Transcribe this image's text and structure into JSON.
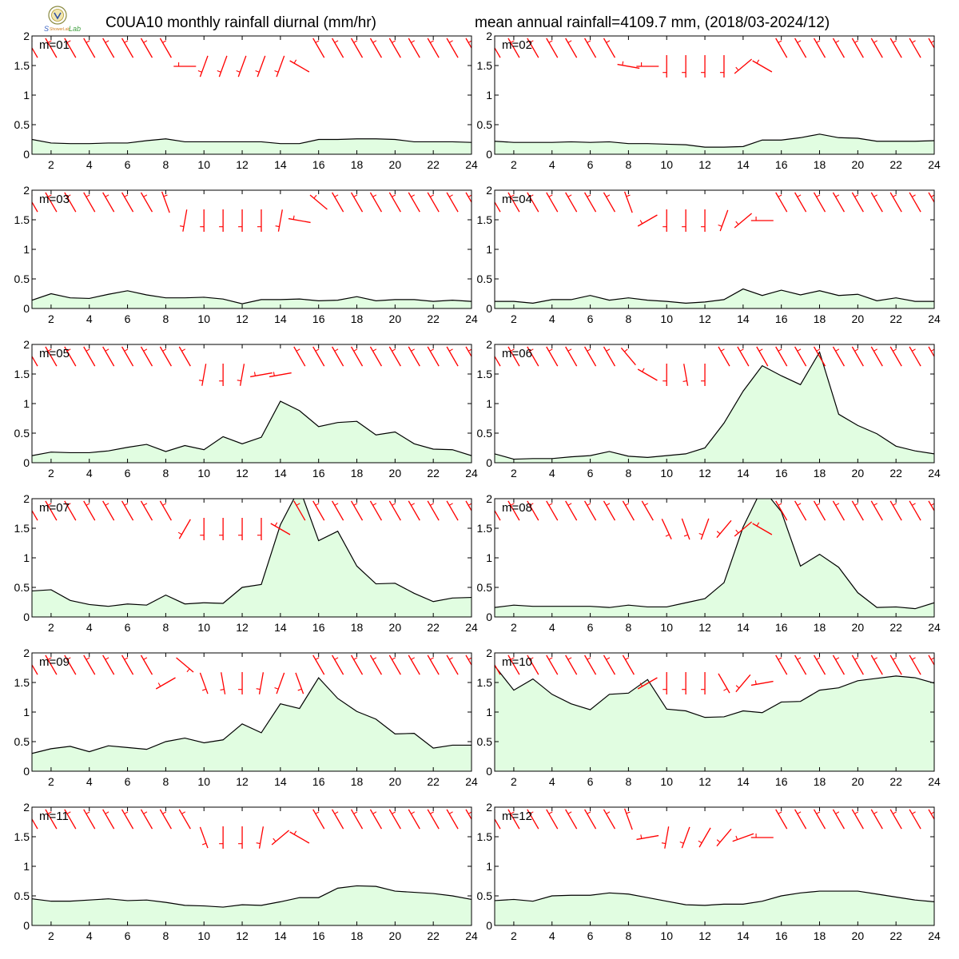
{
  "header": {
    "title_left": "C0UA10 monthly rainfall diurnal (mm/hr)",
    "title_right": "mean annual rainfall=4109.7 mm, (2018/03-2024/12)"
  },
  "colors": {
    "fill": "#e1fde1",
    "line": "#000000",
    "wind": "#ff0000",
    "axis": "#000000"
  },
  "chart_data": [
    {
      "type": "area",
      "label": "m=01",
      "x": [
        1,
        2,
        3,
        4,
        5,
        6,
        7,
        8,
        9,
        10,
        11,
        12,
        13,
        14,
        15,
        16,
        17,
        18,
        19,
        20,
        21,
        22,
        23,
        24
      ],
      "values": [
        0.25,
        0.19,
        0.18,
        0.18,
        0.19,
        0.19,
        0.23,
        0.26,
        0.21,
        0.21,
        0.21,
        0.21,
        0.21,
        0.18,
        0.18,
        0.25,
        0.25,
        0.26,
        0.26,
        0.25,
        0.21,
        0.21,
        0.21,
        0.2
      ],
      "xlim": [
        1,
        24
      ],
      "ylim": [
        0,
        2
      ],
      "wind_dir": [
        330,
        330,
        330,
        330,
        330,
        330,
        330,
        330,
        270,
        200,
        200,
        200,
        200,
        200,
        300,
        330,
        330,
        330,
        330,
        330,
        330,
        330,
        330,
        330
      ]
    },
    {
      "type": "area",
      "label": "m=02",
      "x": [
        1,
        2,
        3,
        4,
        5,
        6,
        7,
        8,
        9,
        10,
        11,
        12,
        13,
        14,
        15,
        16,
        17,
        18,
        19,
        20,
        21,
        22,
        23,
        24
      ],
      "values": [
        0.22,
        0.2,
        0.2,
        0.2,
        0.21,
        0.2,
        0.21,
        0.18,
        0.18,
        0.17,
        0.16,
        0.12,
        0.12,
        0.13,
        0.24,
        0.24,
        0.28,
        0.34,
        0.28,
        0.27,
        0.22,
        0.22,
        0.22,
        0.23
      ],
      "xlim": [
        1,
        24
      ],
      "ylim": [
        0,
        2
      ],
      "wind_dir": [
        330,
        330,
        330,
        330,
        330,
        330,
        330,
        280,
        270,
        180,
        180,
        180,
        180,
        230,
        300,
        330,
        330,
        330,
        330,
        330,
        330,
        330,
        330,
        330
      ]
    },
    {
      "type": "area",
      "label": "m=03",
      "x": [
        1,
        2,
        3,
        4,
        5,
        6,
        7,
        8,
        9,
        10,
        11,
        12,
        13,
        14,
        15,
        16,
        17,
        18,
        19,
        20,
        21,
        22,
        23,
        24
      ],
      "values": [
        0.14,
        0.25,
        0.18,
        0.17,
        0.24,
        0.3,
        0.23,
        0.18,
        0.18,
        0.19,
        0.16,
        0.08,
        0.15,
        0.15,
        0.16,
        0.13,
        0.14,
        0.2,
        0.13,
        0.15,
        0.15,
        0.12,
        0.14,
        0.12
      ],
      "xlim": [
        1,
        24
      ],
      "ylim": [
        0,
        2
      ],
      "wind_dir": [
        330,
        330,
        330,
        330,
        330,
        330,
        330,
        340,
        190,
        180,
        180,
        180,
        180,
        190,
        280,
        310,
        330,
        330,
        330,
        330,
        330,
        330,
        330,
        330
      ]
    },
    {
      "type": "area",
      "label": "m=04",
      "x": [
        1,
        2,
        3,
        4,
        5,
        6,
        7,
        8,
        9,
        10,
        11,
        12,
        13,
        14,
        15,
        16,
        17,
        18,
        19,
        20,
        21,
        22,
        23,
        24
      ],
      "values": [
        0.12,
        0.12,
        0.09,
        0.15,
        0.15,
        0.22,
        0.14,
        0.18,
        0.14,
        0.12,
        0.09,
        0.11,
        0.15,
        0.33,
        0.22,
        0.31,
        0.23,
        0.3,
        0.22,
        0.24,
        0.13,
        0.18,
        0.12,
        0.12
      ],
      "xlim": [
        1,
        24
      ],
      "ylim": [
        0,
        2
      ],
      "wind_dir": [
        330,
        330,
        330,
        330,
        330,
        330,
        330,
        340,
        240,
        180,
        180,
        180,
        200,
        230,
        270,
        330,
        330,
        330,
        330,
        330,
        330,
        330,
        330,
        330
      ]
    },
    {
      "type": "area",
      "label": "m=05",
      "x": [
        1,
        2,
        3,
        4,
        5,
        6,
        7,
        8,
        9,
        10,
        11,
        12,
        13,
        14,
        15,
        16,
        17,
        18,
        19,
        20,
        21,
        22,
        23,
        24
      ],
      "values": [
        0.12,
        0.18,
        0.17,
        0.17,
        0.2,
        0.26,
        0.31,
        0.19,
        0.29,
        0.22,
        0.44,
        0.32,
        0.43,
        1.04,
        0.88,
        0.61,
        0.68,
        0.7,
        0.47,
        0.52,
        0.32,
        0.23,
        0.22,
        0.12
      ],
      "xlim": [
        1,
        24
      ],
      "ylim": [
        0,
        2
      ],
      "wind_dir": [
        330,
        330,
        330,
        330,
        330,
        330,
        330,
        330,
        330,
        190,
        180,
        190,
        260,
        260,
        330,
        330,
        330,
        330,
        330,
        330,
        330,
        330,
        330,
        330
      ]
    },
    {
      "type": "area",
      "label": "m=06",
      "x": [
        1,
        2,
        3,
        4,
        5,
        6,
        7,
        8,
        9,
        10,
        11,
        12,
        13,
        14,
        15,
        16,
        17,
        18,
        19,
        20,
        21,
        22,
        23,
        24
      ],
      "values": [
        0.15,
        0.06,
        0.07,
        0.07,
        0.1,
        0.12,
        0.19,
        0.11,
        0.09,
        0.12,
        0.15,
        0.25,
        0.67,
        1.21,
        1.64,
        1.47,
        1.32,
        1.87,
        0.82,
        0.63,
        0.49,
        0.28,
        0.2,
        0.15
      ],
      "xlim": [
        1,
        24
      ],
      "ylim": [
        0,
        2
      ],
      "wind_dir": [
        330,
        330,
        330,
        330,
        330,
        330,
        330,
        320,
        300,
        180,
        170,
        180,
        330,
        330,
        330,
        330,
        330,
        330,
        330,
        330,
        330,
        330,
        330,
        330
      ]
    },
    {
      "type": "area",
      "label": "m=07",
      "x": [
        1,
        2,
        3,
        4,
        5,
        6,
        7,
        8,
        9,
        10,
        11,
        12,
        13,
        14,
        15,
        16,
        17,
        18,
        19,
        20,
        21,
        22,
        23,
        24
      ],
      "values": [
        0.44,
        0.46,
        0.28,
        0.21,
        0.18,
        0.22,
        0.2,
        0.37,
        0.22,
        0.24,
        0.23,
        0.5,
        0.55,
        1.56,
        2.18,
        1.29,
        1.45,
        0.86,
        0.56,
        0.57,
        0.4,
        0.26,
        0.32,
        0.33
      ],
      "xlim": [
        1,
        24
      ],
      "ylim": [
        0,
        2
      ],
      "wind_dir": [
        330,
        330,
        330,
        330,
        330,
        330,
        330,
        330,
        210,
        180,
        180,
        180,
        180,
        300,
        330,
        330,
        330,
        330,
        330,
        330,
        330,
        330,
        330,
        330
      ]
    },
    {
      "type": "area",
      "label": "m=08",
      "x": [
        1,
        2,
        3,
        4,
        5,
        6,
        7,
        8,
        9,
        10,
        11,
        12,
        13,
        14,
        15,
        16,
        17,
        18,
        19,
        20,
        21,
        22,
        23,
        24
      ],
      "values": [
        0.16,
        0.2,
        0.18,
        0.18,
        0.18,
        0.18,
        0.16,
        0.2,
        0.17,
        0.17,
        0.24,
        0.31,
        0.58,
        1.52,
        2.18,
        1.78,
        0.86,
        1.06,
        0.84,
        0.41,
        0.16,
        0.17,
        0.14,
        0.24
      ],
      "xlim": [
        1,
        24
      ],
      "ylim": [
        0,
        2
      ],
      "wind_dir": [
        330,
        330,
        330,
        330,
        330,
        330,
        330,
        330,
        330,
        155,
        160,
        200,
        220,
        230,
        300,
        330,
        330,
        330,
        330,
        330,
        330,
        330,
        330,
        330
      ]
    },
    {
      "type": "area",
      "label": "m=09",
      "x": [
        1,
        2,
        3,
        4,
        5,
        6,
        7,
        8,
        9,
        10,
        11,
        12,
        13,
        14,
        15,
        16,
        17,
        18,
        19,
        20,
        21,
        22,
        23,
        24
      ],
      "values": [
        0.3,
        0.38,
        0.42,
        0.33,
        0.43,
        0.4,
        0.37,
        0.5,
        0.56,
        0.48,
        0.53,
        0.8,
        0.65,
        1.14,
        1.06,
        1.58,
        1.23,
        1.01,
        0.88,
        0.63,
        0.64,
        0.39,
        0.44,
        0.44
      ],
      "xlim": [
        1,
        24
      ],
      "ylim": [
        0,
        2
      ],
      "wind_dir": [
        330,
        330,
        330,
        330,
        330,
        330,
        330,
        240,
        130,
        160,
        170,
        180,
        190,
        200,
        160,
        330,
        330,
        330,
        330,
        330,
        330,
        330,
        330,
        330
      ]
    },
    {
      "type": "area",
      "label": "m=10",
      "x": [
        1,
        2,
        3,
        4,
        5,
        6,
        7,
        8,
        9,
        10,
        11,
        12,
        13,
        14,
        15,
        16,
        17,
        18,
        19,
        20,
        21,
        22,
        23,
        24
      ],
      "values": [
        1.78,
        1.37,
        1.56,
        1.3,
        1.14,
        1.04,
        1.3,
        1.32,
        1.55,
        1.05,
        1.02,
        0.91,
        0.92,
        1.02,
        0.99,
        1.17,
        1.18,
        1.37,
        1.41,
        1.53,
        1.57,
        1.61,
        1.58,
        1.49
      ],
      "xlim": [
        1,
        24
      ],
      "ylim": [
        0,
        2
      ],
      "wind_dir": [
        330,
        330,
        330,
        330,
        330,
        330,
        330,
        330,
        240,
        180,
        180,
        180,
        150,
        220,
        260,
        330,
        330,
        330,
        330,
        330,
        330,
        330,
        330,
        330
      ]
    },
    {
      "type": "area",
      "label": "m=11",
      "x": [
        1,
        2,
        3,
        4,
        5,
        6,
        7,
        8,
        9,
        10,
        11,
        12,
        13,
        14,
        15,
        16,
        17,
        18,
        19,
        20,
        21,
        22,
        23,
        24
      ],
      "values": [
        0.45,
        0.41,
        0.41,
        0.43,
        0.45,
        0.42,
        0.43,
        0.39,
        0.34,
        0.33,
        0.31,
        0.35,
        0.34,
        0.4,
        0.47,
        0.47,
        0.63,
        0.67,
        0.66,
        0.58,
        0.56,
        0.54,
        0.5,
        0.44
      ],
      "xlim": [
        1,
        24
      ],
      "ylim": [
        0,
        2
      ],
      "wind_dir": [
        330,
        330,
        330,
        330,
        330,
        330,
        330,
        330,
        330,
        160,
        180,
        180,
        190,
        230,
        300,
        330,
        330,
        330,
        330,
        330,
        330,
        330,
        330,
        330
      ]
    },
    {
      "type": "area",
      "label": "m=12",
      "x": [
        1,
        2,
        3,
        4,
        5,
        6,
        7,
        8,
        9,
        10,
        11,
        12,
        13,
        14,
        15,
        16,
        17,
        18,
        19,
        20,
        21,
        22,
        23,
        24
      ],
      "values": [
        0.42,
        0.44,
        0.41,
        0.5,
        0.51,
        0.51,
        0.55,
        0.53,
        0.47,
        0.41,
        0.35,
        0.34,
        0.36,
        0.36,
        0.41,
        0.5,
        0.55,
        0.58,
        0.58,
        0.58,
        0.53,
        0.48,
        0.43,
        0.4
      ],
      "xlim": [
        1,
        24
      ],
      "ylim": [
        0,
        2
      ],
      "wind_dir": [
        330,
        330,
        330,
        330,
        330,
        330,
        330,
        340,
        260,
        190,
        200,
        210,
        220,
        250,
        270,
        330,
        330,
        330,
        330,
        330,
        330,
        330,
        330,
        330
      ]
    }
  ]
}
